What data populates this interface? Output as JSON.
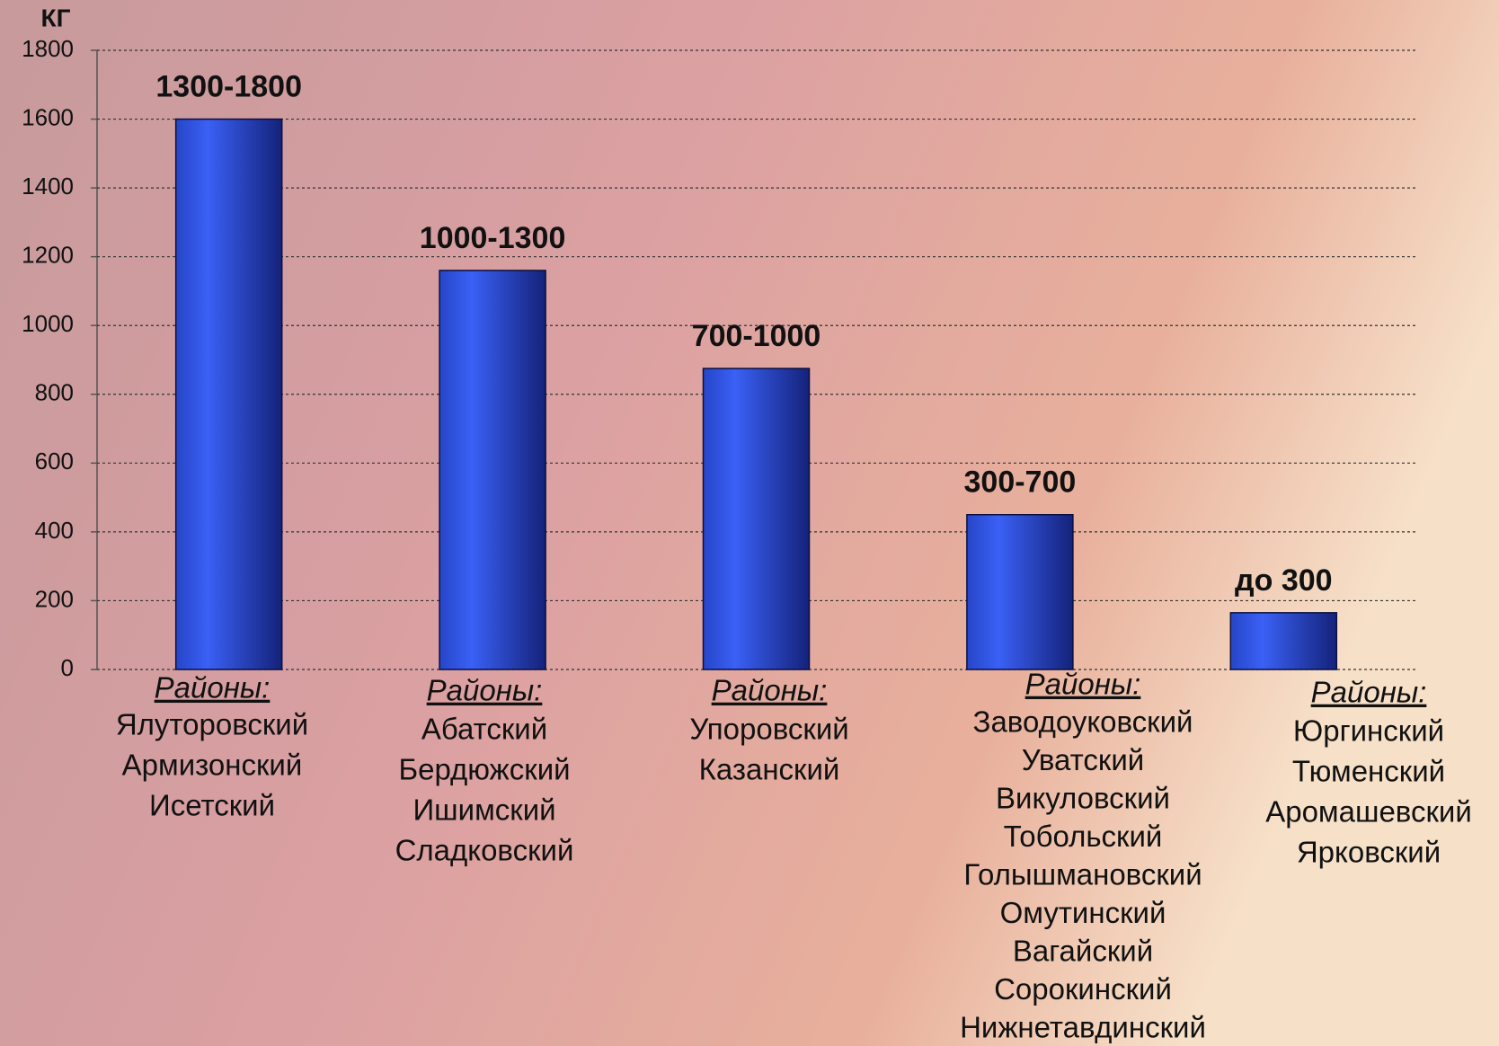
{
  "chart_data": {
    "type": "bar",
    "y_axis_label": "КГ",
    "categories": [
      "1300-1800",
      "1000-1300",
      "700-1000",
      "300-700",
      "до 300"
    ],
    "values": [
      1600,
      1160,
      875,
      450,
      165
    ],
    "color": "#2f4fe0",
    "ylim": [
      0,
      1800
    ],
    "yticks": [
      0,
      200,
      400,
      600,
      800,
      1000,
      1200,
      1400,
      1600,
      1800
    ],
    "grid": true,
    "group_heading": "Районы:",
    "groups": [
      [
        "Ялуторовский",
        "Армизонский",
        "Исетский"
      ],
      [
        "Абатский",
        "Бердюжский",
        "Ишимский",
        "Сладковский"
      ],
      [
        "Упоровский",
        "Казанский"
      ],
      [
        "Заводоуковский",
        "Уватский",
        "Викуловский",
        "Тобольский",
        "Голышмановский",
        "Омутинский",
        "Вагайский",
        "Сорокинский",
        "Нижнетавдинский"
      ],
      [
        "Юргинский",
        "Тюменский",
        "Аромашевский",
        "Ярковский"
      ]
    ]
  }
}
